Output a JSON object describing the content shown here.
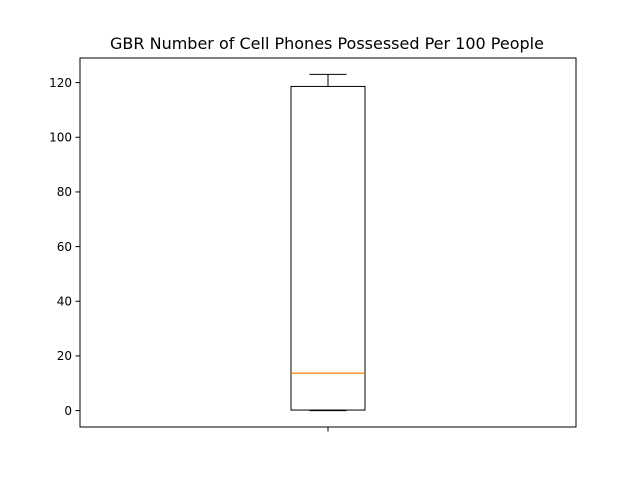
{
  "chart_data": {
    "type": "box",
    "title": "GBR Number of Cell Phones Possessed Per 100 People",
    "xlabel": "",
    "ylabel": "",
    "ylim": [
      -6,
      129
    ],
    "yticks": [
      0,
      20,
      40,
      60,
      80,
      100,
      120
    ],
    "ytick_labels": [
      "0",
      "20",
      "40",
      "60",
      "80",
      100,
      "120"
    ],
    "series": [
      {
        "min": 0,
        "q1": 0.2,
        "median": 13.7,
        "q3": 118.6,
        "max": 123
      }
    ],
    "grid": false,
    "colors": {
      "box": "#000000",
      "median": "#ff7f0e",
      "axes": "#000000"
    }
  }
}
